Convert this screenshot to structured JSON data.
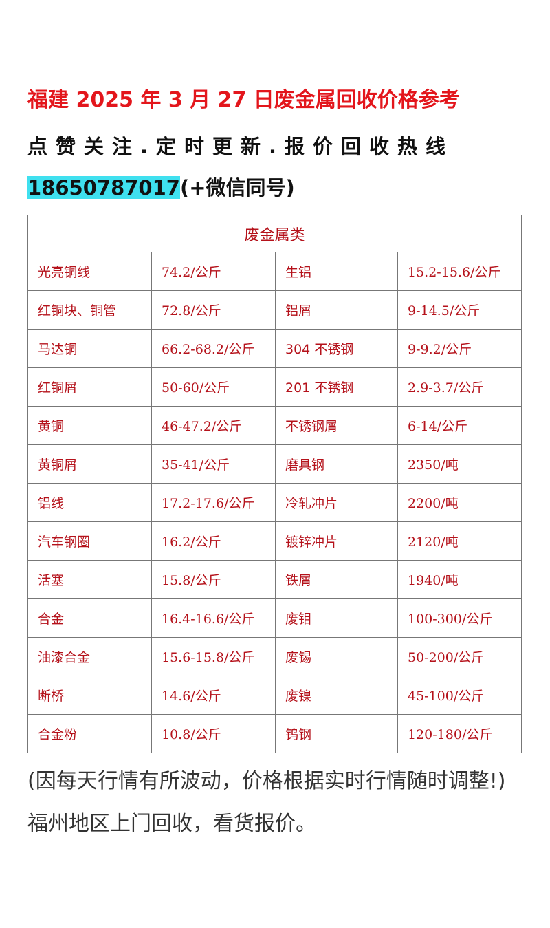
{
  "header": {
    "title": "福建 2025 年 3 月 27 日废金属回收价格参考",
    "subtitle": "点赞关注.定时更新.报价回收热线",
    "phone": "18650787017",
    "phone_note": "(+微信同号)"
  },
  "table": {
    "caption": "废金属类",
    "rows": [
      [
        "光亮铜线",
        "74.2/公斤",
        "生铝",
        "15.2-15.6/公斤"
      ],
      [
        "红铜块、铜管",
        "72.8/公斤",
        "铝屑",
        "9-14.5/公斤"
      ],
      [
        "马达铜",
        "66.2-68.2/公斤",
        "304 不锈钢",
        "9-9.2/公斤"
      ],
      [
        "红铜屑",
        "50-60/公斤",
        "201 不锈钢",
        "2.9-3.7/公斤"
      ],
      [
        "黄铜",
        "46-47.2/公斤",
        "不锈钢屑",
        "6-14/公斤"
      ],
      [
        "黄铜屑",
        "35-41/公斤",
        "磨具钢",
        "2350/吨"
      ],
      [
        "铝线",
        "17.2-17.6/公斤",
        "冷轧冲片",
        "2200/吨"
      ],
      [
        "汽车钢圈",
        "16.2/公斤",
        "镀锌冲片",
        "2120/吨"
      ],
      [
        "活塞",
        "15.8/公斤",
        "铁屑",
        "1940/吨"
      ],
      [
        "合金",
        "16.4-16.6/公斤",
        "废钼",
        "100-300/公斤"
      ],
      [
        "油漆合金",
        "15.6-15.8/公斤",
        "废锡",
        "50-200/公斤"
      ],
      [
        "断桥",
        "14.6/公斤",
        "废镍",
        "45-100/公斤"
      ],
      [
        "合金粉",
        "10.8/公斤",
        "钨钢",
        "120-180/公斤"
      ]
    ]
  },
  "footer": {
    "note": "(因每天行情有所波动，价格根据实时行情随时调整!)福州地区上门回收，看货报价。"
  }
}
